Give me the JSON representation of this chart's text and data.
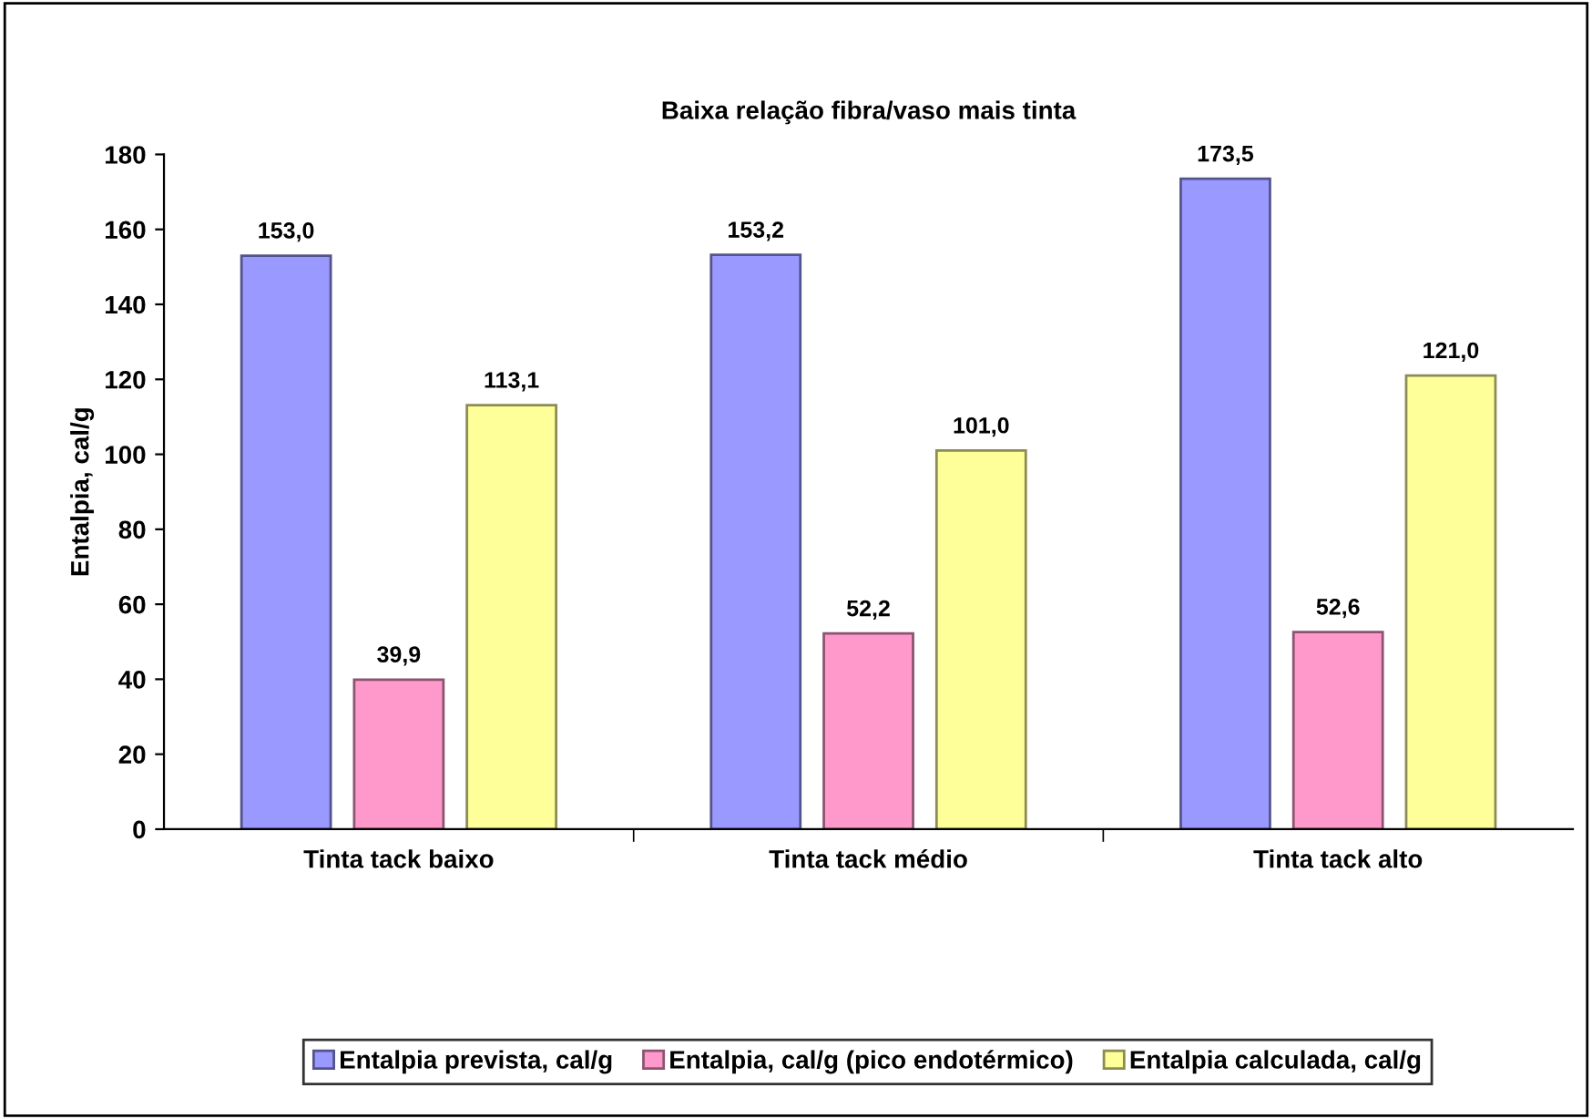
{
  "chart_data": {
    "type": "bar",
    "title": "Baixa relação fibra/vaso mais tinta",
    "ylabel": "Entalpia, cal/g",
    "categories": [
      "Tinta tack baixo",
      "Tinta tack médio",
      "Tinta tack alto"
    ],
    "series": [
      {
        "name": "Entalpia prevista, cal/g",
        "color": "#9999ff",
        "values": [
          153.0,
          153.2,
          173.5
        ],
        "value_labels": [
          "153,0",
          "153,2",
          "173,5"
        ]
      },
      {
        "name": "Entalpia, cal/g (pico endotérmico)",
        "color": "#ff99cc",
        "values": [
          39.9,
          52.2,
          52.6
        ],
        "value_labels": [
          "39,9",
          "52,2",
          "52,6"
        ]
      },
      {
        "name": "Entalpia calculada, cal/g",
        "color": "#ffff99",
        "values": [
          113.1,
          101.0,
          121.0
        ],
        "value_labels": [
          "113,1",
          "101,0",
          "121,0"
        ]
      }
    ],
    "ylim": [
      0,
      180
    ],
    "yticks": [
      0,
      20,
      40,
      60,
      80,
      100,
      120,
      140,
      160,
      180
    ],
    "grid": false,
    "legend": "bottom"
  }
}
